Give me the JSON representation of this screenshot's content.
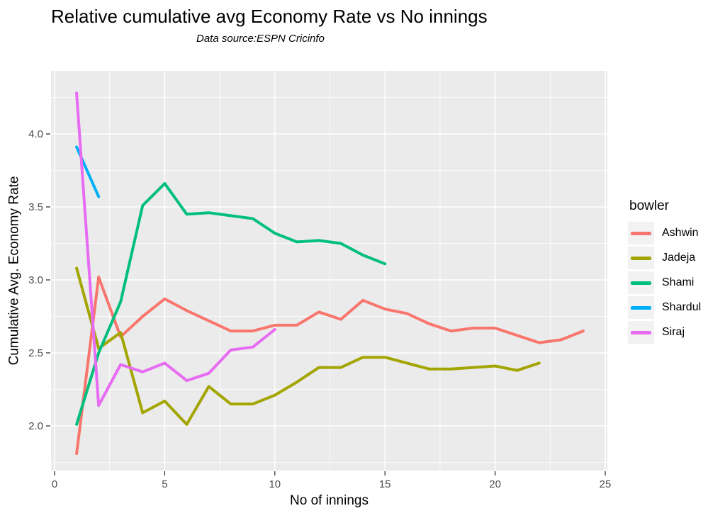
{
  "chart_data": {
    "type": "line",
    "title": "Relative cumulative avg Economy Rate vs No innings",
    "subtitle": "Data source:ESPN Cricinfo",
    "xlabel": "No of innings",
    "ylabel": "Cumulative Avg. Economy Rate",
    "legend_title": "bowler",
    "legend_position": "right",
    "grid": "major and minor white gridlines on gray panel",
    "xlim": [
      -0.15,
      25.15
    ],
    "ylim": [
      1.69,
      4.43
    ],
    "x_ticks": [
      0,
      5,
      10,
      15,
      20,
      25
    ],
    "x_minor_ticks": [
      2.5,
      7.5,
      12.5,
      17.5,
      22.5
    ],
    "y_ticks": [
      2.0,
      2.5,
      3.0,
      3.5,
      4.0
    ],
    "y_tick_labels": [
      "2.0",
      "2.5",
      "3.0",
      "3.5",
      "4.0"
    ],
    "y_minor_ticks": [
      1.75,
      2.25,
      2.75,
      3.25,
      3.75,
      4.25
    ],
    "series": [
      {
        "name": "Ashwin",
        "color": "#F8766D",
        "x": [
          1,
          2,
          3,
          4,
          5,
          6,
          7,
          8,
          9,
          10,
          11,
          12,
          13,
          14,
          15,
          16,
          17,
          18,
          19,
          20,
          21,
          22,
          23,
          24
        ],
        "values": [
          1.81,
          3.02,
          2.61,
          2.75,
          2.87,
          2.79,
          2.72,
          2.65,
          2.65,
          2.69,
          2.69,
          2.78,
          2.73,
          2.86,
          2.8,
          2.77,
          2.7,
          2.65,
          2.67,
          2.67,
          2.62,
          2.57,
          2.59,
          2.65
        ]
      },
      {
        "name": "Jadeja",
        "color": "#A3A500",
        "x": [
          1,
          2,
          3,
          4,
          5,
          6,
          7,
          8,
          9,
          10,
          11,
          12,
          13,
          14,
          15,
          16,
          17,
          18,
          19,
          20,
          21,
          22
        ],
        "values": [
          3.08,
          2.53,
          2.64,
          2.09,
          2.17,
          2.01,
          2.27,
          2.15,
          2.15,
          2.21,
          2.3,
          2.4,
          2.4,
          2.47,
          2.47,
          2.43,
          2.39,
          2.39,
          2.4,
          2.41,
          2.38,
          2.43
        ]
      },
      {
        "name": "Shami",
        "color": "#00BF7D",
        "x": [
          1,
          2,
          3,
          4,
          5,
          6,
          7,
          8,
          9,
          10,
          11,
          12,
          13,
          14,
          15
        ],
        "values": [
          2.01,
          2.5,
          2.85,
          3.51,
          3.66,
          3.45,
          3.46,
          3.44,
          3.42,
          3.32,
          3.26,
          3.27,
          3.25,
          3.17,
          3.11
        ]
      },
      {
        "name": "Shardul",
        "color": "#00B0F6",
        "x": [
          1,
          2
        ],
        "values": [
          3.91,
          3.57
        ]
      },
      {
        "name": "Siraj",
        "color": "#E76BF3",
        "x": [
          1,
          2,
          3,
          4,
          5,
          6,
          7,
          8,
          9,
          10
        ],
        "values": [
          4.28,
          2.14,
          2.42,
          2.37,
          2.43,
          2.31,
          2.36,
          2.52,
          2.54,
          2.66
        ]
      }
    ]
  },
  "colors": {
    "page_bg": "#FFFFFF",
    "panel_bg": "#EBEBEB",
    "grid_major": "#FFFFFF",
    "grid_minor": "#FFFFFF",
    "tick_mark": "#333333",
    "tick_text": "#4D4D4D",
    "text": "#000000",
    "legend_key_bg": "#F2F2F2"
  }
}
